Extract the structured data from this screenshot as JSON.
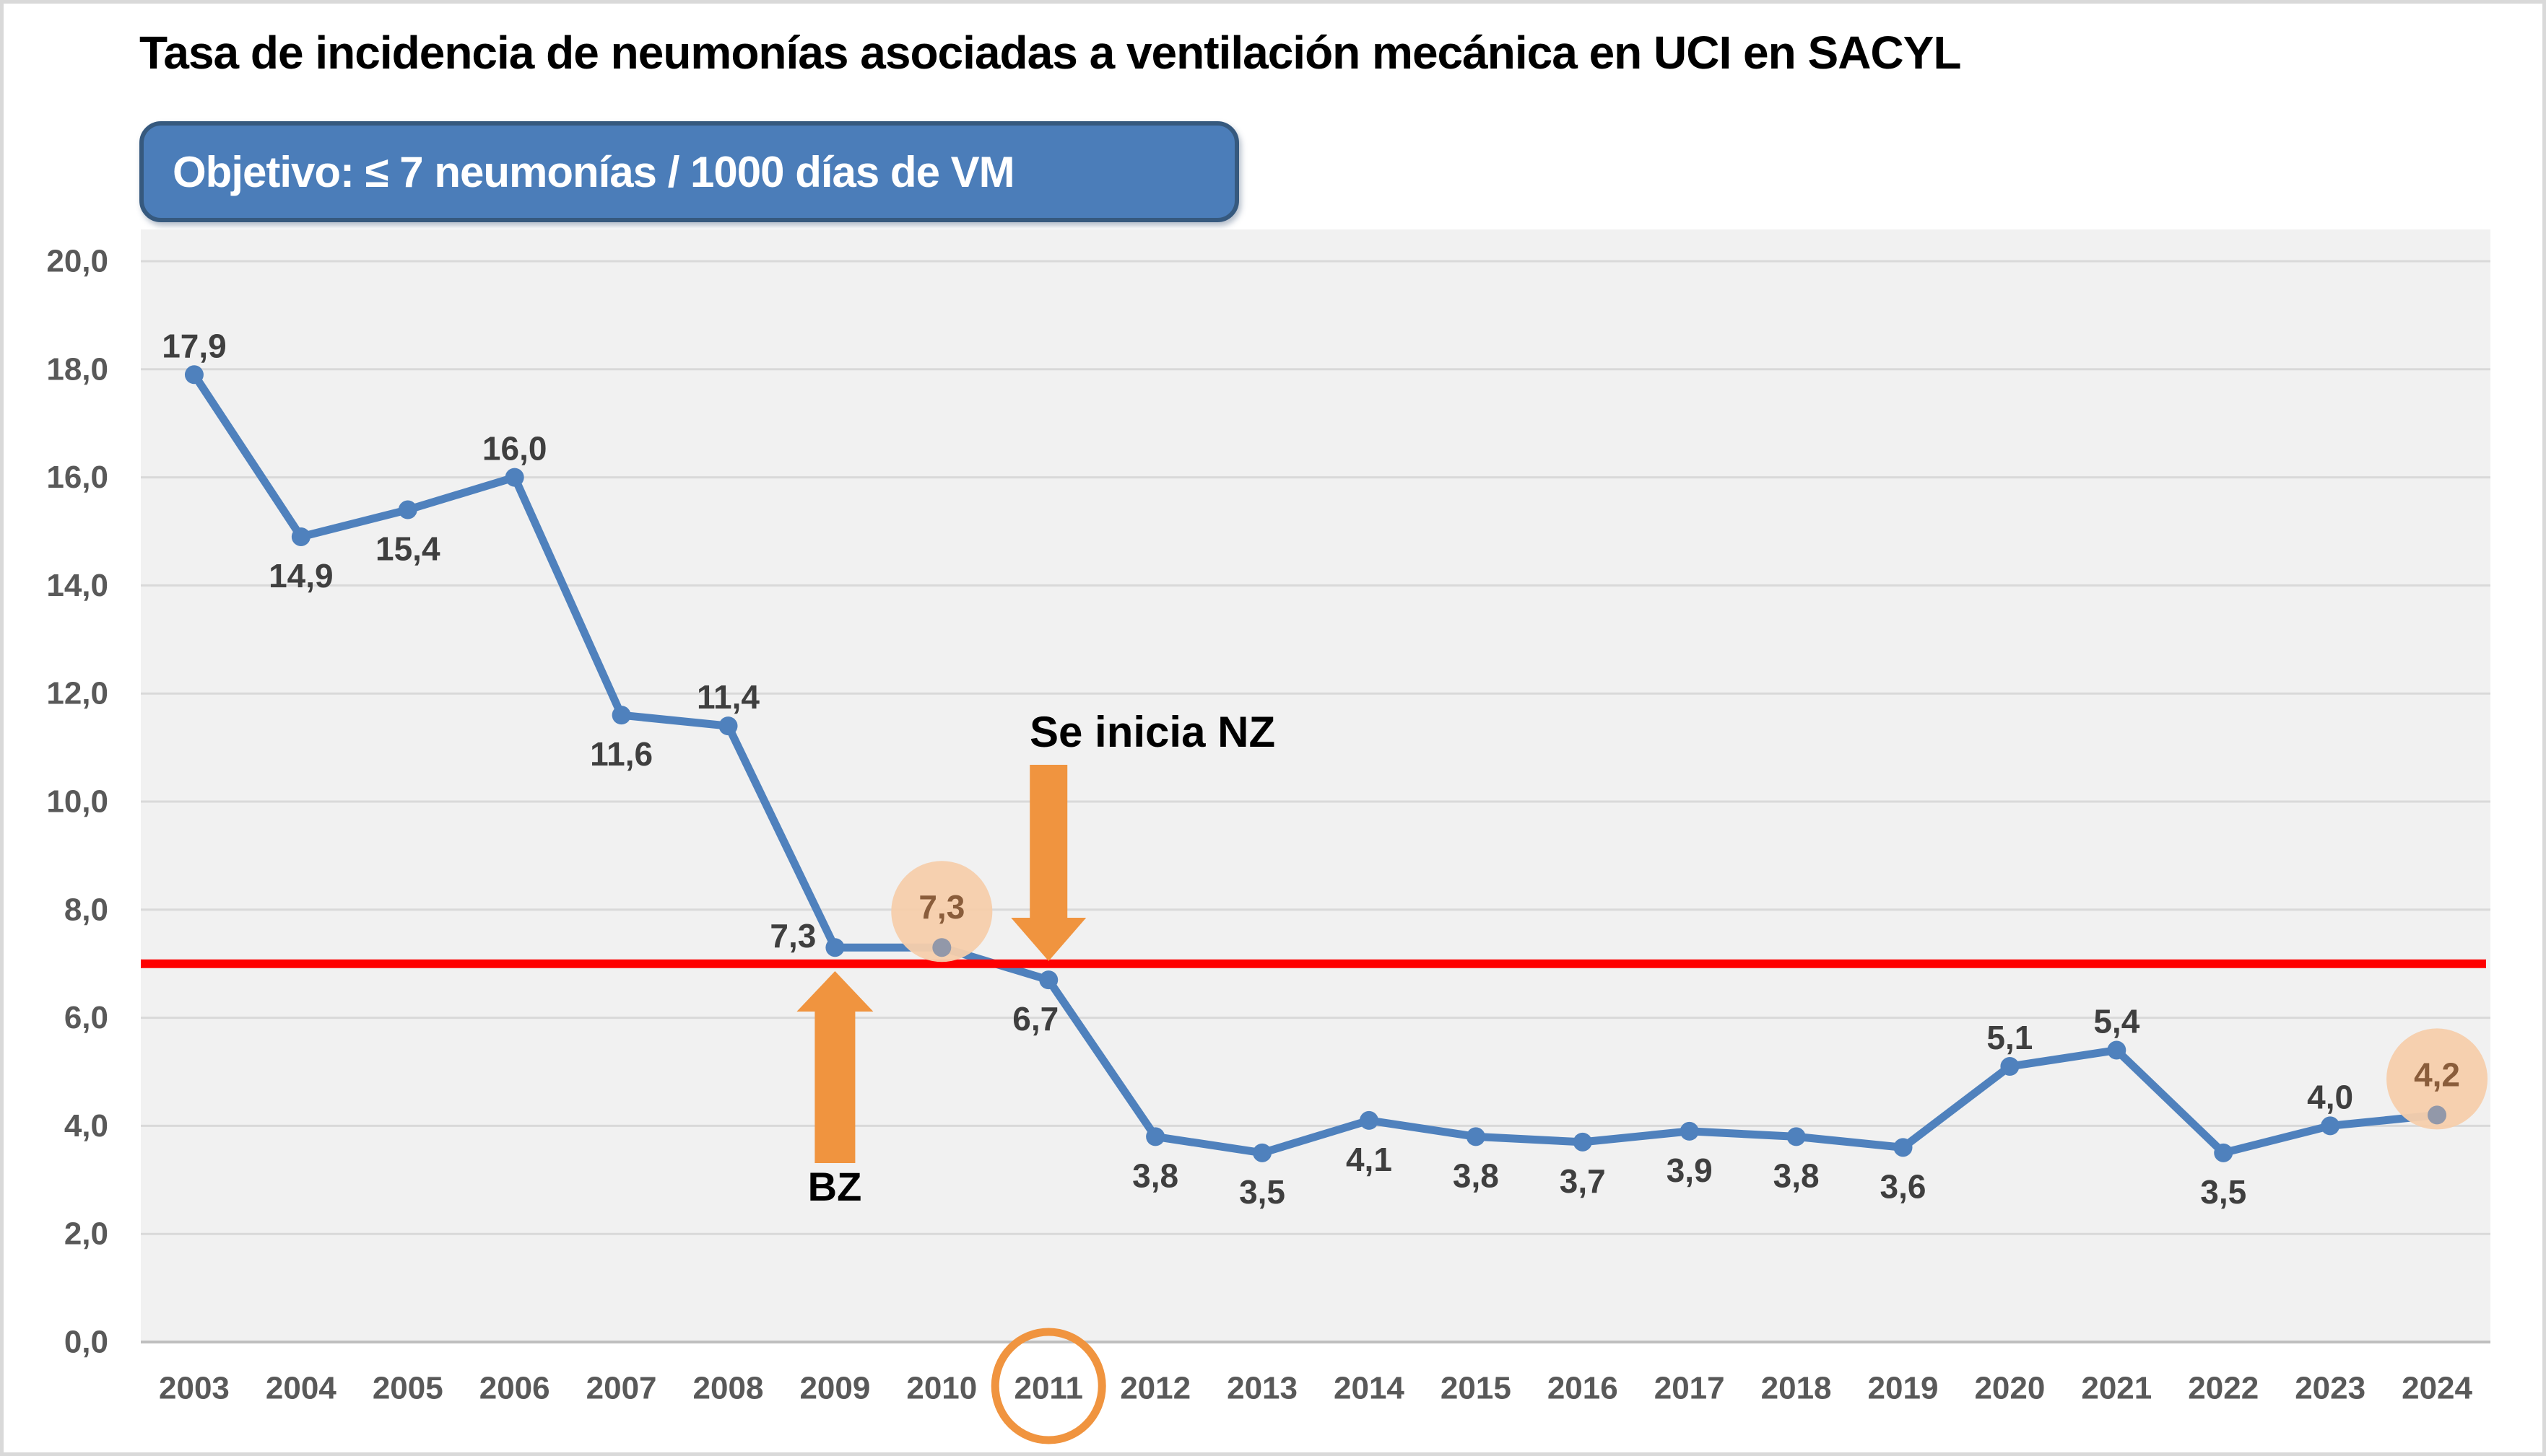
{
  "chart_data": {
    "type": "line",
    "title": "Tasa de incidencia de neumonías asociadas a ventilación mecánica en UCI en SACYL",
    "objective_label": "Objetivo: ≤ 7 neumonías / 1000 días de VM",
    "categories": [
      "2003",
      "2004",
      "2005",
      "2006",
      "2007",
      "2008",
      "2009",
      "2010",
      "2011",
      "2012",
      "2013",
      "2014",
      "2015",
      "2016",
      "2017",
      "2018",
      "2019",
      "2020",
      "2021",
      "2022",
      "2023",
      "2024"
    ],
    "values": [
      17.9,
      14.9,
      15.4,
      16.0,
      11.6,
      11.4,
      7.3,
      7.3,
      6.7,
      3.8,
      3.5,
      4.1,
      3.8,
      3.7,
      3.9,
      3.8,
      3.6,
      5.1,
      5.4,
      3.5,
      4.0,
      4.2
    ],
    "value_labels": [
      "17,9",
      "14,9",
      "15,4",
      "16,0",
      "11,6",
      "11,4",
      "7,3",
      "7,3",
      "6,7",
      "3,8",
      "3,5",
      "4,1",
      "3,8",
      "3,7",
      "3,9",
      "3,8",
      "3,6",
      "5,1",
      "5,4",
      "3,5",
      "4,0",
      "4,2"
    ],
    "label_placements": [
      "above",
      "below",
      "below",
      "above",
      "below",
      "above",
      "left",
      "above-far",
      "below-left",
      "below",
      "below",
      "below",
      "below",
      "below",
      "below",
      "below",
      "below",
      "above",
      "above",
      "below",
      "above",
      "above-far"
    ],
    "xlabel": "",
    "ylabel": "",
    "ylim": [
      0,
      20
    ],
    "ytick_step": 2,
    "ytick_labels": [
      "20,0",
      "18,0",
      "16,0",
      "14,0",
      "12,0",
      "10,0",
      "8,0",
      "6,0",
      "4,0",
      "2,0",
      "0,0"
    ],
    "grid": true,
    "legend": "none",
    "reference_line": {
      "value": 7,
      "color": "#fe0000"
    },
    "series_color": "#4f81bd",
    "highlights": [
      {
        "category": "2010",
        "circle_color": "#f5cdab",
        "label_color": "#8a5d3b",
        "marker_color": "#9298a9"
      },
      {
        "category": "2024",
        "circle_color": "#f5cdab",
        "label_color": "#8a5d3b",
        "marker_color": "#9298a9"
      }
    ],
    "annotations": [
      {
        "id": "bz",
        "text": "BZ",
        "arrow": "up",
        "category": "2009"
      },
      {
        "id": "nz",
        "text": "Se inicia NZ",
        "arrow": "down",
        "category": "2011"
      },
      {
        "id": "circled-year",
        "shape": "ellipse-outline",
        "category": "2011"
      }
    ],
    "colors": {
      "axis_text": "#595959",
      "data_label": "#3f3f3f",
      "gridline": "#d9d9d9",
      "axis_line": "#bfbfbf",
      "plot_bg": "#f1f1f1",
      "arrow": "#f0943f"
    }
  }
}
